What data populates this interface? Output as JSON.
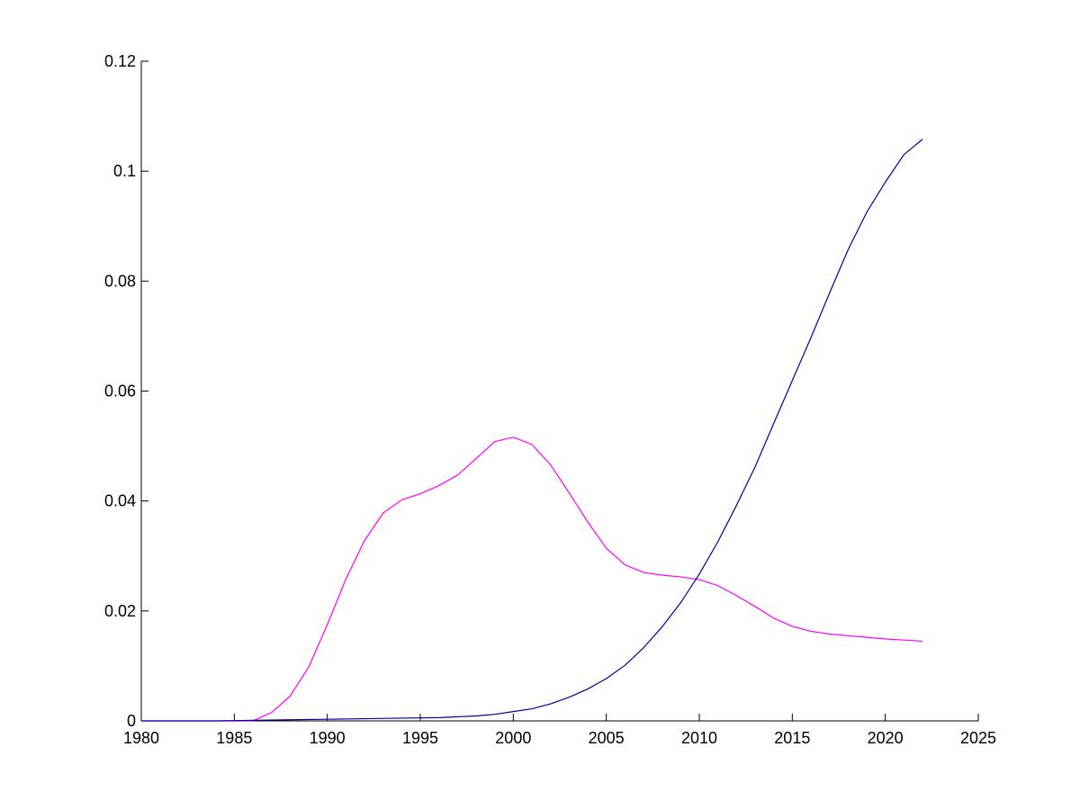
{
  "chart_data": {
    "type": "line",
    "title": "",
    "xlabel": "",
    "ylabel": "",
    "xlim": [
      1980,
      2025
    ],
    "ylim": [
      0,
      0.12
    ],
    "grid": false,
    "x_ticks": [
      1980,
      1985,
      1990,
      1995,
      2000,
      2005,
      2010,
      2015,
      2020,
      2025
    ],
    "x_tick_labels": [
      "1980",
      "1985",
      "1990",
      "1995",
      "2000",
      "2005",
      "2010",
      "2015",
      "2020",
      "2025"
    ],
    "y_ticks": [
      0,
      0.02,
      0.04,
      0.06,
      0.08,
      0.1,
      0.12
    ],
    "y_tick_labels": [
      "0",
      "0.02",
      "0.04",
      "0.06",
      "0.08",
      "0.1",
      "0.12"
    ],
    "series": [
      {
        "color": "#ff00ff",
        "points": [
          [
            1980,
            0
          ],
          [
            1981,
            0
          ],
          [
            1982,
            0
          ],
          [
            1983,
            0
          ],
          [
            1984,
            0
          ],
          [
            1985,
            0
          ],
          [
            1986,
            0
          ],
          [
            1987,
            0.0015
          ],
          [
            1988,
            0.0045
          ],
          [
            1989,
            0.0098
          ],
          [
            1990,
            0.0175
          ],
          [
            1991,
            0.0258
          ],
          [
            1992,
            0.0328
          ],
          [
            1993,
            0.0378
          ],
          [
            1994,
            0.0402
          ],
          [
            1995,
            0.0413
          ],
          [
            1996,
            0.0428
          ],
          [
            1997,
            0.0447
          ],
          [
            1998,
            0.0477
          ],
          [
            1999,
            0.0508
          ],
          [
            2000,
            0.0516
          ],
          [
            2001,
            0.0503
          ],
          [
            2002,
            0.0466
          ],
          [
            2003,
            0.0415
          ],
          [
            2004,
            0.0362
          ],
          [
            2005,
            0.0314
          ],
          [
            2006,
            0.0284
          ],
          [
            2007,
            0.027
          ],
          [
            2008,
            0.0265
          ],
          [
            2009,
            0.0262
          ],
          [
            2010,
            0.0257
          ],
          [
            2011,
            0.0246
          ],
          [
            2012,
            0.0228
          ],
          [
            2013,
            0.0208
          ],
          [
            2014,
            0.0187
          ],
          [
            2015,
            0.0172
          ],
          [
            2016,
            0.0163
          ],
          [
            2017,
            0.0158
          ],
          [
            2018,
            0.0155
          ],
          [
            2019,
            0.0152
          ],
          [
            2020,
            0.0149
          ],
          [
            2021,
            0.0147
          ],
          [
            2022,
            0.0145
          ]
        ]
      },
      {
        "color": "#0000a0",
        "points": [
          [
            1980,
            0
          ],
          [
            1982,
            0
          ],
          [
            1984,
            0
          ],
          [
            1986,
            0.0001
          ],
          [
            1988,
            0.0002
          ],
          [
            1990,
            0.0003
          ],
          [
            1992,
            0.0004
          ],
          [
            1994,
            0.0005
          ],
          [
            1996,
            0.0006
          ],
          [
            1998,
            0.0009
          ],
          [
            1999,
            0.0012
          ],
          [
            2000,
            0.0017
          ],
          [
            2001,
            0.0022
          ],
          [
            2002,
            0.0031
          ],
          [
            2003,
            0.0043
          ],
          [
            2004,
            0.0058
          ],
          [
            2005,
            0.0077
          ],
          [
            2006,
            0.0101
          ],
          [
            2007,
            0.0133
          ],
          [
            2008,
            0.0171
          ],
          [
            2009,
            0.0215
          ],
          [
            2010,
            0.0267
          ],
          [
            2011,
            0.0326
          ],
          [
            2012,
            0.0392
          ],
          [
            2013,
            0.0462
          ],
          [
            2014,
            0.0541
          ],
          [
            2015,
            0.0619
          ],
          [
            2016,
            0.0697
          ],
          [
            2017,
            0.0778
          ],
          [
            2018,
            0.0857
          ],
          [
            2019,
            0.0925
          ],
          [
            2020,
            0.098
          ],
          [
            2021,
            0.103
          ],
          [
            2022,
            0.1058
          ]
        ]
      }
    ]
  }
}
